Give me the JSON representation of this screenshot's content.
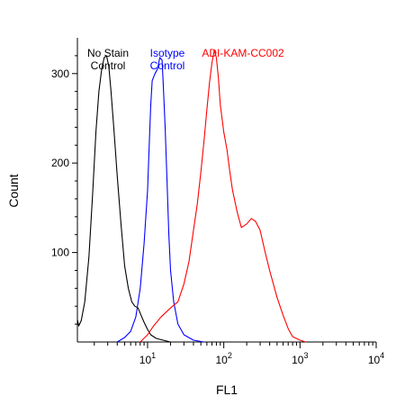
{
  "chart_data": {
    "type": "line",
    "title": "",
    "xlabel": "FL1",
    "ylabel": "Count",
    "x_scale": "log",
    "xlim": [
      1.2,
      10000
    ],
    "ylim": [
      0,
      340
    ],
    "x_ticks": [
      {
        "value": 10,
        "base": "10",
        "exp": "1"
      },
      {
        "value": 100,
        "base": "10",
        "exp": "2"
      },
      {
        "value": 1000,
        "base": "10",
        "exp": "3"
      },
      {
        "value": 10000,
        "base": "10",
        "exp": "4"
      }
    ],
    "y_ticks": [
      {
        "value": 100,
        "label": "100"
      },
      {
        "value": 200,
        "label": "200"
      },
      {
        "value": 300,
        "label": "300"
      }
    ],
    "grid": false,
    "series": [
      {
        "name": "No Stain Control",
        "label_lines": [
          "No Stain",
          "Control"
        ],
        "color": "#000000",
        "points": [
          [
            1.2,
            25
          ],
          [
            1.25,
            18
          ],
          [
            1.35,
            24
          ],
          [
            1.5,
            45
          ],
          [
            1.7,
            95
          ],
          [
            1.9,
            165
          ],
          [
            2.1,
            235
          ],
          [
            2.3,
            280
          ],
          [
            2.5,
            305
          ],
          [
            2.7,
            318
          ],
          [
            2.9,
            320
          ],
          [
            3.1,
            308
          ],
          [
            3.3,
            282
          ],
          [
            3.6,
            240
          ],
          [
            4.0,
            185
          ],
          [
            4.5,
            130
          ],
          [
            5.0,
            85
          ],
          [
            5.6,
            60
          ],
          [
            6.2,
            45
          ],
          [
            6.8,
            40
          ],
          [
            7.5,
            38
          ],
          [
            8.2,
            30
          ],
          [
            9.0,
            22
          ],
          [
            10,
            14
          ],
          [
            11,
            8
          ],
          [
            13,
            4
          ],
          [
            16,
            2
          ],
          [
            20,
            0
          ]
        ]
      },
      {
        "name": "Isotype Control",
        "label_lines": [
          "Isotype",
          "Control"
        ],
        "color": "#0000ff",
        "points": [
          [
            4.0,
            0
          ],
          [
            5.0,
            5
          ],
          [
            6.0,
            12
          ],
          [
            7.0,
            28
          ],
          [
            8.0,
            60
          ],
          [
            9.0,
            110
          ],
          [
            10,
            170
          ],
          [
            10.5,
            220
          ],
          [
            11,
            265
          ],
          [
            11.5,
            292
          ],
          [
            12.5,
            300
          ],
          [
            13.5,
            305
          ],
          [
            14.5,
            318
          ],
          [
            15.5,
            315
          ],
          [
            16,
            290
          ],
          [
            17,
            240
          ],
          [
            18,
            180
          ],
          [
            19,
            120
          ],
          [
            20,
            80
          ],
          [
            22,
            45
          ],
          [
            25,
            20
          ],
          [
            30,
            8
          ],
          [
            40,
            2
          ],
          [
            55,
            0
          ]
        ]
      },
      {
        "name": "ADI-KAM-CC002",
        "label_lines": [
          "ADI-KAM-CC002"
        ],
        "color": "#ff0000",
        "points": [
          [
            8.0,
            0
          ],
          [
            10,
            8
          ],
          [
            12,
            18
          ],
          [
            15,
            28
          ],
          [
            20,
            38
          ],
          [
            25,
            45
          ],
          [
            30,
            65
          ],
          [
            35,
            90
          ],
          [
            40,
            125
          ],
          [
            45,
            155
          ],
          [
            50,
            190
          ],
          [
            55,
            225
          ],
          [
            60,
            260
          ],
          [
            65,
            290
          ],
          [
            70,
            312
          ],
          [
            75,
            326
          ],
          [
            80,
            318
          ],
          [
            85,
            295
          ],
          [
            90,
            265
          ],
          [
            100,
            235
          ],
          [
            110,
            215
          ],
          [
            120,
            190
          ],
          [
            130,
            170
          ],
          [
            150,
            145
          ],
          [
            170,
            128
          ],
          [
            200,
            132
          ],
          [
            230,
            138
          ],
          [
            260,
            135
          ],
          [
            300,
            125
          ],
          [
            350,
            100
          ],
          [
            400,
            80
          ],
          [
            500,
            50
          ],
          [
            600,
            30
          ],
          [
            700,
            15
          ],
          [
            800,
            6
          ],
          [
            1000,
            2
          ],
          [
            1200,
            0
          ]
        ]
      }
    ]
  }
}
